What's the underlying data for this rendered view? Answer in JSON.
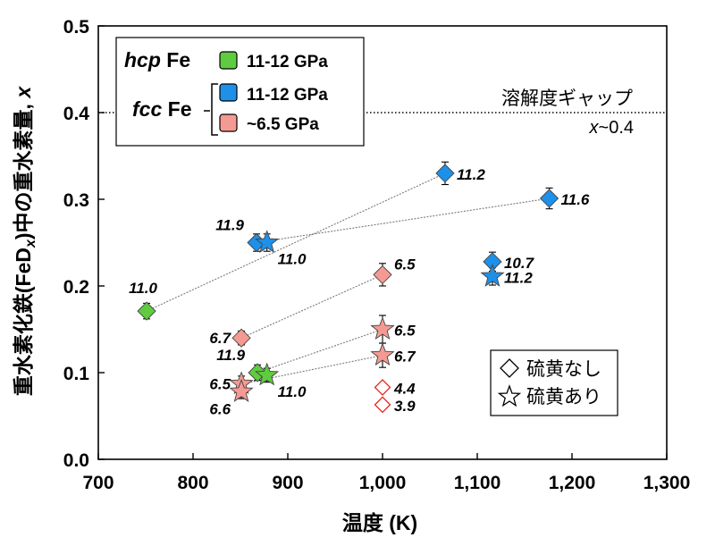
{
  "chart_data": {
    "type": "scatter",
    "xlabel": "温度 (K)",
    "ylabel_main": "重水素化鉄(FeD",
    "ylabel_sub": "x",
    "ylabel_tail": ")中の重水素量, ",
    "ylabel_var": "x",
    "xlim": [
      700,
      1300
    ],
    "ylim": [
      0,
      0.5
    ],
    "xticks": [
      700,
      800,
      900,
      1000,
      1100,
      1200,
      1300
    ],
    "xtick_labels": [
      "700",
      "800",
      "900",
      "1,000",
      "1,100",
      "1,200",
      "1,300"
    ],
    "yticks": [
      0,
      0.1,
      0.2,
      0.3,
      0.4,
      0.5
    ],
    "ytick_labels": [
      "0.0",
      "0.1",
      "0.2",
      "0.3",
      "0.4",
      "0.5"
    ],
    "colors": {
      "green": "#5fcc3f",
      "blue": "#1e90e8",
      "pink": "#f59a93",
      "red_outline": "#e8291f",
      "axis": "#000000",
      "tie_line": "#7a7a7a"
    },
    "gap_line": {
      "y": 0.4,
      "label": "溶解度ギャップ",
      "sublabel_var": "x",
      "sublabel_rest": "~0.4"
    },
    "legend": {
      "hcp_label_italic": "hcp",
      "hcp_label_rest": " Fe",
      "fcc_label_italic": "fcc",
      "fcc_label_rest": " Fe",
      "entries": [
        "11-12 GPa",
        "11-12 GPa",
        "~6.5 GPa"
      ]
    },
    "shape_legend": {
      "diamond": "硫黄なし",
      "star": "硫黄あり"
    },
    "series": [
      {
        "color": "green",
        "marker": "diamond",
        "x": 751,
        "y": 0.171,
        "err": 0.009,
        "label": "11.0",
        "label_pos": "above"
      },
      {
        "color": "green",
        "marker": "diamond",
        "x": 868,
        "y": 0.1,
        "err": 0.009,
        "label": "11.9",
        "label_pos": "upper-left"
      },
      {
        "color": "green",
        "marker": "star",
        "x": 878,
        "y": 0.097,
        "err": 0.008,
        "label": "11.0",
        "label_pos": "lower-right"
      },
      {
        "color": "blue",
        "marker": "diamond",
        "x": 867,
        "y": 0.25,
        "err": 0.01,
        "label": "11.9",
        "label_pos": "upper-left"
      },
      {
        "color": "blue",
        "marker": "star",
        "x": 878,
        "y": 0.25,
        "err": 0.01,
        "label": "11.0",
        "label_pos": "lower-right"
      },
      {
        "color": "blue",
        "marker": "diamond",
        "x": 1066,
        "y": 0.33,
        "err": 0.013,
        "label": "11.2",
        "label_pos": "right"
      },
      {
        "color": "blue",
        "marker": "diamond",
        "x": 1176,
        "y": 0.301,
        "err": 0.012,
        "label": "11.6",
        "label_pos": "right"
      },
      {
        "color": "blue",
        "marker": "diamond",
        "x": 1116,
        "y": 0.228,
        "err": 0.011,
        "label": "10.7",
        "label_pos": "right"
      },
      {
        "color": "blue",
        "marker": "star",
        "x": 1116,
        "y": 0.211,
        "err": 0.01,
        "label": "11.2",
        "label_pos": "right"
      },
      {
        "color": "pink",
        "marker": "diamond",
        "x": 1000,
        "y": 0.213,
        "err": 0.013,
        "label": "6.5",
        "label_pos": "right-up"
      },
      {
        "color": "pink",
        "marker": "diamond",
        "x": 851,
        "y": 0.14,
        "err": 0.008,
        "label": "6.7",
        "label_pos": "left"
      },
      {
        "color": "pink",
        "marker": "star",
        "x": 1000,
        "y": 0.15,
        "err": 0.016,
        "label": "6.5",
        "label_pos": "right"
      },
      {
        "color": "pink",
        "marker": "star",
        "x": 1000,
        "y": 0.12,
        "err": 0.014,
        "label": "6.7",
        "label_pos": "right"
      },
      {
        "color": "pink",
        "marker": "star",
        "x": 851,
        "y": 0.087,
        "err": 0.009,
        "label": "6.5",
        "label_pos": "left"
      },
      {
        "color": "pink",
        "marker": "star",
        "x": 851,
        "y": 0.078,
        "err": 0.008,
        "label": "6.6",
        "label_pos": "lower-left"
      },
      {
        "color": "open-red",
        "marker": "diamond",
        "x": 1000,
        "y": 0.083,
        "err": 0,
        "label": "4.4",
        "label_pos": "right"
      },
      {
        "color": "open-red",
        "marker": "diamond",
        "x": 1000,
        "y": 0.063,
        "err": 0,
        "label": "3.9",
        "label_pos": "right"
      }
    ],
    "tie_lines": [
      [
        [
          751,
          0.171
        ],
        [
          1066,
          0.33
        ]
      ],
      [
        [
          867,
          0.25
        ],
        [
          1176,
          0.301
        ]
      ],
      [
        [
          851,
          0.14
        ],
        [
          1000,
          0.213
        ]
      ],
      [
        [
          868,
          0.1
        ],
        [
          1000,
          0.15
        ]
      ],
      [
        [
          851,
          0.087
        ],
        [
          1000,
          0.12
        ]
      ]
    ]
  }
}
